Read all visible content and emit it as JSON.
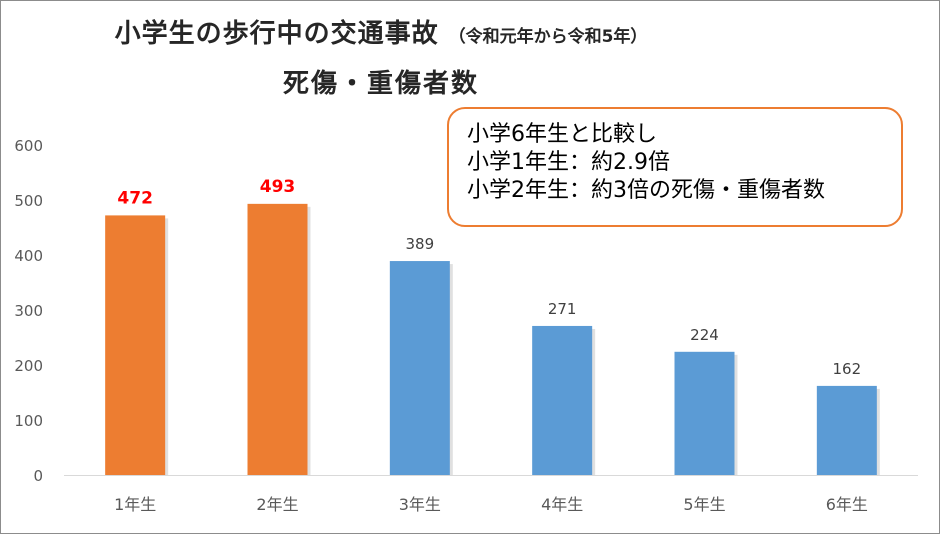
{
  "chart_data": {
    "type": "bar",
    "title": "小学生の歩行中の交通事故",
    "title_note": "（令和元年から令和5年）",
    "subtitle": "死傷・重傷者数",
    "categories": [
      "1年生",
      "2年生",
      "3年生",
      "4年生",
      "5年生",
      "6年生"
    ],
    "values": [
      472,
      493,
      389,
      271,
      224,
      162
    ],
    "bar_colors": [
      "#ed7d31",
      "#ed7d31",
      "#5b9bd5",
      "#5b9bd5",
      "#5b9bd5",
      "#5b9bd5"
    ],
    "label_colors": [
      "#ff0000",
      "#ff0000",
      "#404040",
      "#404040",
      "#404040",
      "#404040"
    ],
    "y_ticks": [
      "0",
      "100",
      "200",
      "300",
      "400",
      "500",
      "600"
    ],
    "ylim": [
      0,
      600
    ],
    "grid": false,
    "xlabel": "",
    "ylabel": ""
  },
  "callout": {
    "lines": [
      "小学6年生と比較し",
      "小学1年生：約2.9倍",
      "小学2年生：約3倍の死傷・重傷者数"
    ],
    "border_color": "#ed7d31"
  }
}
